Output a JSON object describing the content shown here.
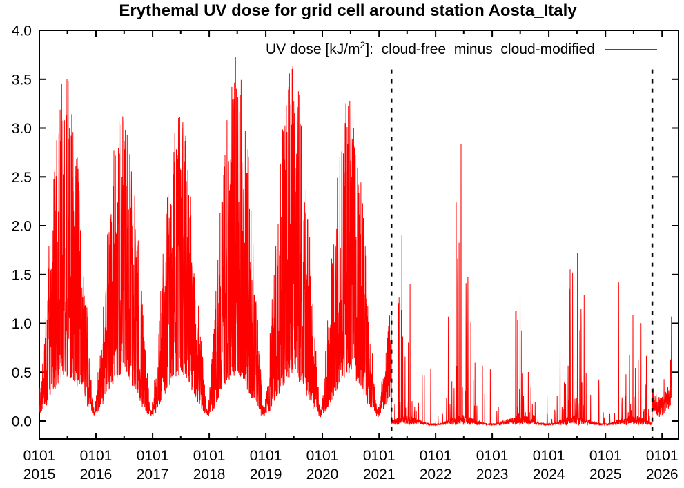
{
  "title": "Erythemal UV dose for grid cell around station Aosta_Italy",
  "legend": {
    "label_prefix": "UV dose [kJ/m",
    "label_sup": "2",
    "label_suffix": "]:  cloud-free  minus  cloud-modified",
    "series_color": "#ff0000"
  },
  "chart_data": {
    "type": "line",
    "title": "Erythemal UV dose for grid cell around station Aosta_Italy",
    "series": [
      {
        "name": "UV dose [kJ/m2]: cloud-free minus cloud-modified",
        "color": "#ff0000",
        "cadence": "daily"
      }
    ],
    "x_axis": {
      "range_start": "2015-01-01",
      "range_end": "2026-04-17",
      "tick_label_top": "0101",
      "tick_years": [
        "2015",
        "2016",
        "2017",
        "2018",
        "2019",
        "2020",
        "2021",
        "2022",
        "2023",
        "2024",
        "2025",
        "2026"
      ],
      "minor_ticks": "mid-year"
    },
    "y_axis": {
      "tick_labels": [
        "0.0",
        "0.5",
        "1.0",
        "1.5",
        "2.0",
        "2.5",
        "3.0",
        "3.5",
        "4.0"
      ],
      "tick_values": [
        0,
        0.5,
        1,
        1.5,
        2,
        2.5,
        3,
        3.5,
        4
      ],
      "range": [
        -0.19,
        4.0
      ]
    },
    "grid": "off",
    "legend_position": "inside top, right-aligned",
    "dashed_vlines": [
      {
        "date": "2021-03-22",
        "top_value": 3.6
      },
      {
        "date": "2025-10-30",
        "top_value": 3.6
      }
    ],
    "series_start": "2015-01-01",
    "series_end": "2026-03-06",
    "flat_regime": {
      "start": "2021-03-22",
      "end": "2025-10-30",
      "baseline": -0.035,
      "note": "between the dashed lines the baseline sits just below zero with sparse spikes"
    },
    "annual_max": {
      "2015": 3.5,
      "2016": 3.12,
      "2017": 3.11,
      "2018": 3.73,
      "2019": 3.63,
      "2020": 3.28,
      "2021": 1.9,
      "2022": 2.84,
      "2023": 1.31,
      "2024": 1.72,
      "2025": 1.42,
      "2026": 1.07
    },
    "notable_peaks": [
      {
        "date": "2015-06-28",
        "value": 3.5
      },
      {
        "date": "2016-06-22",
        "value": 3.12
      },
      {
        "date": "2017-06-25",
        "value": 3.11
      },
      {
        "date": "2018-06-20",
        "value": 3.73
      },
      {
        "date": "2019-06-24",
        "value": 3.63
      },
      {
        "date": "2020-06-26",
        "value": 3.28
      },
      {
        "date": "2021-05-28",
        "value": 1.9
      },
      {
        "date": "2022-06-14",
        "value": 2.84
      },
      {
        "date": "2023-06-30",
        "value": 1.31
      },
      {
        "date": "2024-07-04",
        "value": 1.72
      },
      {
        "date": "2025-03-27",
        "value": 1.42
      },
      {
        "date": "2026-03-02",
        "value": 1.07
      }
    ]
  }
}
